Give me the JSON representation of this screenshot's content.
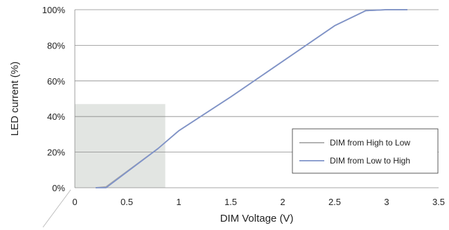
{
  "chart_data": {
    "type": "line",
    "xlabel": "DIM Voltage (V)",
    "ylabel": "LED current (%)",
    "xlim": [
      0,
      3.5
    ],
    "ylim": [
      0,
      100
    ],
    "xticks": [
      0,
      0.5,
      1,
      1.5,
      2,
      2.5,
      3,
      3.5
    ],
    "xtick_labels": [
      "0",
      "0.5",
      "1",
      "1.5",
      "2",
      "2.5",
      "3",
      "3.5"
    ],
    "yticks": [
      0,
      20,
      40,
      60,
      80,
      100
    ],
    "ytick_labels": [
      "0%",
      "20%",
      "40%",
      "60%",
      "80%",
      "100%"
    ],
    "grid": "horizontal",
    "legend": "bottom-right",
    "highlight_region": {
      "x": [
        0,
        0.87
      ],
      "y": [
        0,
        47
      ],
      "color": "#e2e5e2"
    },
    "series": [
      {
        "name": "DIM from High to Low",
        "color": "#a8a8a8",
        "x": [
          0.2,
          0.3,
          0.8,
          1.0,
          1.5,
          2.0,
          2.5,
          2.8,
          3.0,
          3.2
        ],
        "y": [
          0,
          0.5,
          22,
          32,
          51,
          71,
          91,
          99.5,
          100,
          100
        ]
      },
      {
        "name": "DIM from Low to High",
        "color": "#7f93c9",
        "x": [
          0.2,
          0.3,
          0.8,
          1.0,
          1.5,
          2.0,
          2.5,
          2.8,
          3.0,
          3.2
        ],
        "y": [
          0,
          0,
          22,
          32,
          51,
          71,
          91,
          99.5,
          100,
          100
        ]
      }
    ]
  }
}
